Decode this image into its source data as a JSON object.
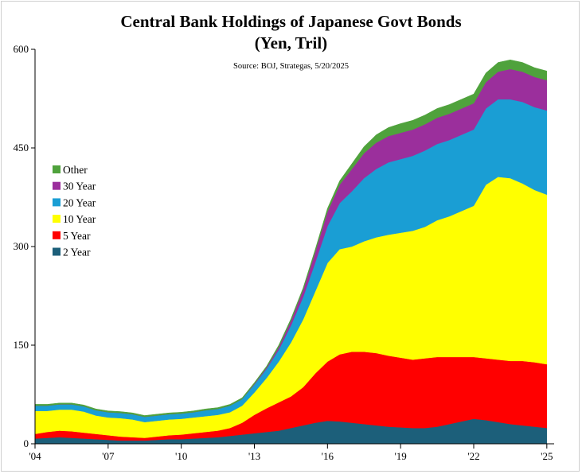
{
  "chart_data": {
    "type": "area",
    "stacked": true,
    "title": "Central Bank Holdings of Japanese Govt Bonds",
    "subtitle": "(Yen, Tril)",
    "source": "Source: BOJ, Strategas, 5/20/2025",
    "xlabel": "",
    "ylabel": "",
    "ylim": [
      0,
      600
    ],
    "y_ticks": [
      0,
      150,
      300,
      450,
      600
    ],
    "y_tick_labels": [
      "0",
      "150",
      "300",
      "450",
      "600"
    ],
    "xlim": [
      2004,
      2025.3
    ],
    "x_ticks": [
      2004,
      2007,
      2010,
      2013,
      2016,
      2019,
      2022,
      2025
    ],
    "x_tick_labels": [
      "'04",
      "'07",
      "'10",
      "'13",
      "'16",
      "'19",
      "'22",
      "'25"
    ],
    "legend_position": "left",
    "x": [
      2004.0,
      2004.5,
      2005.0,
      2005.5,
      2006.0,
      2006.5,
      2007.0,
      2007.5,
      2008.0,
      2008.5,
      2009.0,
      2009.5,
      2010.0,
      2010.5,
      2011.0,
      2011.5,
      2012.0,
      2012.5,
      2013.0,
      2013.5,
      2014.0,
      2014.5,
      2015.0,
      2015.5,
      2016.0,
      2016.5,
      2017.0,
      2017.5,
      2018.0,
      2018.5,
      2019.0,
      2019.5,
      2020.0,
      2020.5,
      2021.0,
      2021.5,
      2022.0,
      2022.5,
      2023.0,
      2023.5,
      2024.0,
      2024.5,
      2025.0
    ],
    "series": [
      {
        "name": "2 Year",
        "color": "#1c5f7a",
        "values": [
          8,
          9,
          10,
          9,
          8,
          7,
          6,
          5,
          5,
          5,
          6,
          7,
          7,
          8,
          9,
          10,
          12,
          14,
          16,
          18,
          20,
          24,
          28,
          32,
          35,
          34,
          32,
          30,
          28,
          26,
          25,
          24,
          24,
          26,
          30,
          34,
          38,
          36,
          33,
          30,
          28,
          26,
          24
        ]
      },
      {
        "name": "5 Year",
        "color": "#ff0000",
        "values": [
          7,
          9,
          10,
          10,
          9,
          8,
          7,
          6,
          5,
          4,
          5,
          6,
          7,
          8,
          9,
          10,
          12,
          18,
          28,
          36,
          43,
          48,
          58,
          75,
          90,
          102,
          108,
          110,
          110,
          108,
          106,
          104,
          106,
          106,
          102,
          98,
          94,
          94,
          95,
          96,
          98,
          98,
          97
        ]
      },
      {
        "name": "10 Year",
        "color": "#ffff00",
        "values": [
          35,
          32,
          32,
          33,
          32,
          28,
          27,
          28,
          27,
          24,
          24,
          24,
          24,
          24,
          24,
          24,
          24,
          26,
          34,
          46,
          62,
          82,
          103,
          125,
          150,
          160,
          160,
          168,
          176,
          184,
          190,
          196,
          200,
          208,
          214,
          222,
          230,
          264,
          278,
          278,
          270,
          262,
          258
        ]
      },
      {
        "name": "20 Year",
        "color": "#1a9ed4",
        "values": [
          8,
          8,
          8,
          8,
          8,
          8,
          8,
          8,
          8,
          8,
          8,
          8,
          8,
          8,
          9,
          9,
          10,
          10,
          12,
          14,
          18,
          26,
          34,
          44,
          56,
          70,
          84,
          96,
          104,
          110,
          112,
          114,
          116,
          116,
          116,
          116,
          116,
          116,
          118,
          120,
          124,
          126,
          128
        ]
      },
      {
        "name": "30 Year",
        "color": "#9b2f9c",
        "values": [
          0,
          0,
          0,
          0,
          0,
          0,
          0,
          0,
          0,
          0,
          0,
          0,
          0,
          0,
          0,
          0,
          0,
          0,
          1,
          2,
          4,
          7,
          11,
          16,
          22,
          28,
          34,
          38,
          40,
          40,
          40,
          40,
          40,
          40,
          40,
          40,
          40,
          40,
          42,
          46,
          46,
          46,
          46
        ]
      },
      {
        "name": "Other",
        "color": "#4fa23c",
        "values": [
          2,
          2,
          2,
          2,
          2,
          2,
          2,
          2,
          2,
          2,
          2,
          2,
          2,
          2,
          2,
          2,
          2,
          2,
          2,
          2,
          3,
          3,
          3,
          4,
          5,
          6,
          8,
          10,
          12,
          13,
          14,
          14,
          14,
          14,
          14,
          14,
          14,
          14,
          14,
          14,
          14,
          14,
          14
        ]
      }
    ]
  }
}
